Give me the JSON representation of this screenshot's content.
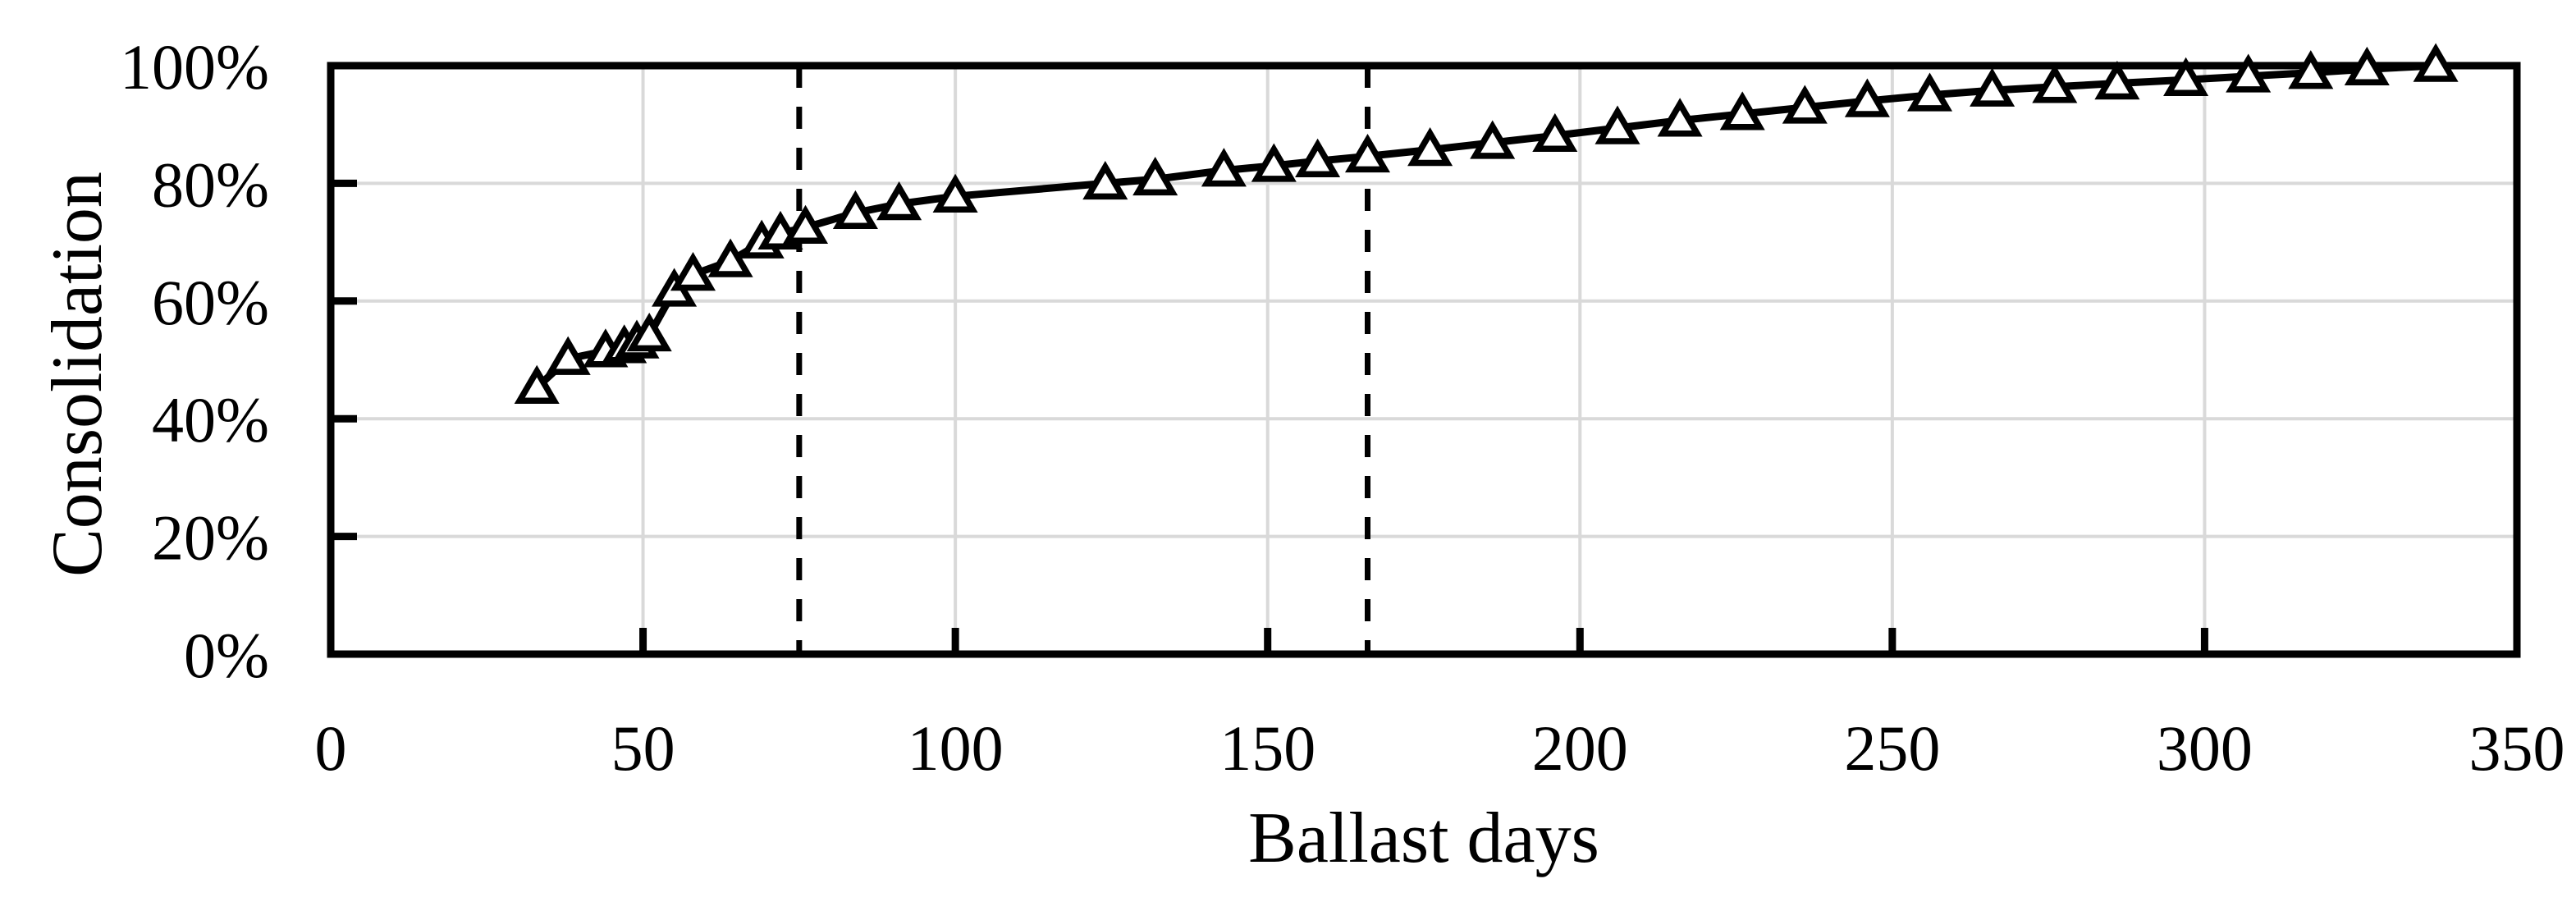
{
  "chart_data": {
    "type": "line",
    "title": "",
    "xlabel": "Ballast days",
    "ylabel": "Consolidation",
    "xlim": [
      0,
      350
    ],
    "ylim": [
      0,
      100
    ],
    "grid": true,
    "legend": "none",
    "x_ticks": [
      {
        "label": "0",
        "value": 0
      },
      {
        "label": "50",
        "value": 50
      },
      {
        "label": "100",
        "value": 100
      },
      {
        "label": "150",
        "value": 150
      },
      {
        "label": "200",
        "value": 200
      },
      {
        "label": "250",
        "value": 250
      },
      {
        "label": "300",
        "value": 300
      },
      {
        "label": "350",
        "value": 350
      }
    ],
    "y_ticks": [
      {
        "label": "0%",
        "value": 0
      },
      {
        "label": "20%",
        "value": 20
      },
      {
        "label": "40%",
        "value": 40
      },
      {
        "label": "60%",
        "value": 60
      },
      {
        "label": "80%",
        "value": 80
      },
      {
        "label": "100%",
        "value": 100
      }
    ],
    "series": [
      {
        "name": "Consolidation",
        "marker": "open-triangle",
        "line_color": "#000000",
        "points": [
          [
            33,
            45.3
          ],
          [
            38,
            50.2
          ],
          [
            44,
            51.5
          ],
          [
            47,
            52.2
          ],
          [
            49,
            53.0
          ],
          [
            51,
            54.2
          ],
          [
            55,
            61.8
          ],
          [
            58,
            64.5
          ],
          [
            64,
            66.8
          ],
          [
            69,
            70.0
          ],
          [
            72,
            71.5
          ],
          [
            76,
            72.5
          ],
          [
            84,
            75.0
          ],
          [
            91,
            76.5
          ],
          [
            100,
            77.8
          ],
          [
            124,
            80.0
          ],
          [
            132,
            80.7
          ],
          [
            143,
            82.2
          ],
          [
            151,
            83.0
          ],
          [
            158,
            83.8
          ],
          [
            166,
            84.6
          ],
          [
            176,
            85.7
          ],
          [
            186,
            86.9
          ],
          [
            196,
            88.1
          ],
          [
            206,
            89.4
          ],
          [
            216,
            90.7
          ],
          [
            226,
            91.8
          ],
          [
            236,
            92.9
          ],
          [
            246,
            94.0
          ],
          [
            256,
            95.0
          ],
          [
            266,
            95.8
          ],
          [
            276,
            96.4
          ],
          [
            286,
            97.0
          ],
          [
            297,
            97.6
          ],
          [
            307,
            98.2
          ],
          [
            317,
            98.8
          ],
          [
            326,
            99.4
          ],
          [
            337,
            100.0
          ]
        ]
      }
    ],
    "reference_lines": [
      {
        "axis": "x",
        "value": 75,
        "style": "dashed",
        "color": "#000000"
      },
      {
        "axis": "x",
        "value": 166,
        "style": "dashed",
        "color": "#000000"
      }
    ],
    "colors": {
      "line": "#000000",
      "marker_fill": "#ffffff",
      "grid": "#d9d9d9",
      "axis": "#000000",
      "text": "#000000",
      "background": "#ffffff"
    }
  }
}
